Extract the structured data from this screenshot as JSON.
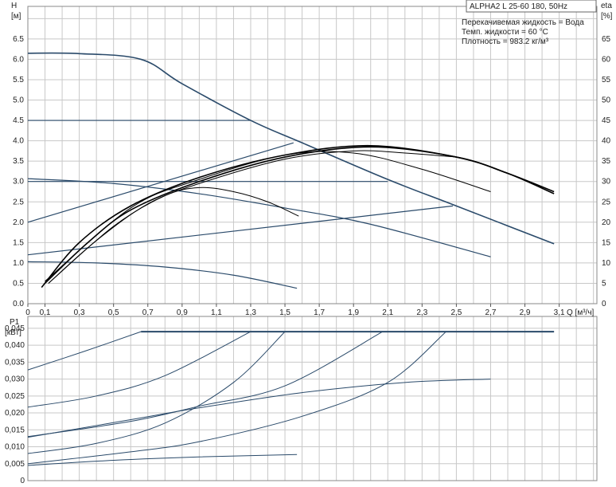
{
  "chart_data": [
    {
      "type": "line",
      "title": "ALPHA2 L 25-60 180, 50Hz",
      "annotations": [
        "Перекачивемая жидкость = Вода",
        "Темп. жидкости = 60 °C",
        "Плотность = 983.2 кг/м³"
      ],
      "ylabel": "H",
      "yunit": "[м]",
      "y2label": "eta",
      "y2unit": "[%]",
      "xlabel": "Q [м³/ч]",
      "xlim": [
        0,
        3.32
      ],
      "ylim": [
        0,
        7.3
      ],
      "y2lim": [
        0,
        73
      ],
      "grid": true,
      "xticks": [
        "0",
        "0,1",
        "0,3",
        "0,5",
        "0,7",
        "0,9",
        "1,1",
        "1,3",
        "1,5",
        "1,7",
        "1,9",
        "2,1",
        "2,3",
        "2,5",
        "2,7",
        "2,9",
        "3,1"
      ],
      "xtick_values": [
        0,
        0.1,
        0.3,
        0.5,
        0.7,
        0.9,
        1.1,
        1.3,
        1.5,
        1.7,
        1.9,
        2.1,
        2.3,
        2.5,
        2.7,
        2.9,
        3.1
      ],
      "yticks": [
        "0.0",
        "0.5",
        "1.0",
        "1.5",
        "2.0",
        "2.5",
        "3.0",
        "3.5",
        "4.0",
        "4.5",
        "5.0",
        "5.5",
        "6.0",
        "6.5"
      ],
      "y2ticks": [
        "0",
        "5",
        "10",
        "15",
        "20",
        "25",
        "30",
        "35",
        "40",
        "45",
        "50",
        "55",
        "60",
        "65"
      ],
      "head_series": [
        {
          "color": "#2a4a6a",
          "points": [
            [
              0,
              6.15
            ],
            [
              0.3,
              6.14
            ],
            [
              0.66,
              6.0
            ],
            [
              0.9,
              5.4
            ],
            [
              1.3,
              4.5
            ],
            [
              1.6,
              3.95
            ],
            [
              2.1,
              3.05
            ],
            [
              2.5,
              2.4
            ],
            [
              3.07,
              1.47
            ]
          ]
        },
        {
          "color": "#2a4a6a",
          "points": [
            [
              0,
              4.5
            ],
            [
              1.3,
              4.5
            ]
          ]
        },
        {
          "color": "#2a4a6a",
          "points": [
            [
              0,
              3.0
            ],
            [
              2.1,
              3.0
            ]
          ]
        },
        {
          "color": "#2a4a6a",
          "points": [
            [
              0,
              2.0
            ],
            [
              1.55,
              3.95
            ]
          ]
        },
        {
          "color": "#2a4a6a",
          "points": [
            [
              0,
              1.2
            ],
            [
              2.48,
              2.4
            ]
          ]
        },
        {
          "color": "#2a4a6a",
          "points": [
            [
              0,
              3.07
            ],
            [
              0.5,
              2.95
            ],
            [
              1.0,
              2.7
            ],
            [
              1.5,
              2.35
            ],
            [
              2.0,
              1.95
            ],
            [
              2.7,
              1.15
            ]
          ]
        },
        {
          "color": "#2a4a6a",
          "points": [
            [
              0,
              1.03
            ],
            [
              0.4,
              1.0
            ],
            [
              0.8,
              0.9
            ],
            [
              1.2,
              0.7
            ],
            [
              1.57,
              0.38
            ]
          ]
        }
      ],
      "eta_series": [
        {
          "color": "#000000",
          "points": [
            [
              0.08,
              4
            ],
            [
              0.3,
              15
            ],
            [
              0.6,
              24
            ],
            [
              1.0,
              31
            ],
            [
              1.5,
              36.5
            ],
            [
              2.0,
              38.8
            ],
            [
              2.5,
              36
            ],
            [
              2.8,
              32
            ],
            [
              3.07,
              27.5
            ]
          ]
        },
        {
          "color": "#000000",
          "points": [
            [
              0.1,
              5
            ],
            [
              0.35,
              15
            ],
            [
              0.6,
              23
            ],
            [
              1.0,
              30
            ],
            [
              1.5,
              36
            ],
            [
              2.0,
              38.5
            ],
            [
              2.5,
              36
            ],
            [
              2.8,
              32
            ],
            [
              3.07,
              27
            ]
          ]
        },
        {
          "color": "#000000",
          "points": [
            [
              0.12,
              5
            ],
            [
              0.4,
              15.5
            ],
            [
              0.7,
              24.5
            ],
            [
              1.0,
              29.5
            ],
            [
              1.5,
              35.5
            ],
            [
              1.9,
              37.5
            ],
            [
              2.2,
              37
            ],
            [
              2.5,
              36
            ]
          ]
        },
        {
          "color": "#000000",
          "points": [
            [
              0.1,
              5.5
            ],
            [
              0.6,
              23.5
            ],
            [
              1.0,
              30.5
            ],
            [
              1.5,
              36.5
            ],
            [
              1.9,
              37
            ],
            [
              2.3,
              33
            ],
            [
              2.7,
              27.5
            ]
          ]
        },
        {
          "color": "#000000",
          "points": [
            [
              0.12,
              5
            ],
            [
              0.5,
              19
            ],
            [
              0.8,
              26.5
            ],
            [
              1.0,
              28.5
            ],
            [
              1.2,
              27.5
            ],
            [
              1.4,
              25
            ],
            [
              1.58,
              21.5
            ]
          ]
        }
      ]
    },
    {
      "type": "line",
      "ylabel": "P1",
      "yunit": "[кВт]",
      "xlim": [
        0,
        3.32
      ],
      "ylim": [
        0,
        0.0485
      ],
      "grid": true,
      "yticks": [
        "0",
        "0,005",
        "0,010",
        "0,015",
        "0,020",
        "0,025",
        "0,030",
        "0,035",
        "0,040",
        "0,045"
      ],
      "series": [
        {
          "color": "#2a4a6a",
          "points": [
            [
              0.66,
              0.044
            ],
            [
              3.07,
              0.044
            ]
          ]
        },
        {
          "color": "#2a4a6a",
          "points": [
            [
              0,
              0.0327
            ],
            [
              0.33,
              0.0382
            ],
            [
              0.66,
              0.044
            ]
          ]
        },
        {
          "color": "#2a4a6a",
          "points": [
            [
              0,
              0.0217
            ],
            [
              0.4,
              0.025
            ],
            [
              0.8,
              0.031
            ],
            [
              1.3,
              0.044
            ]
          ]
        },
        {
          "color": "#2a4a6a",
          "points": [
            [
              0,
              0.008
            ],
            [
              0.4,
              0.011
            ],
            [
              0.8,
              0.017
            ],
            [
              1.2,
              0.029
            ],
            [
              1.5,
              0.044
            ]
          ]
        },
        {
          "color": "#2a4a6a",
          "points": [
            [
              0,
              0.013
            ],
            [
              0.6,
              0.0175
            ],
            [
              1.0,
              0.022
            ],
            [
              1.5,
              0.028
            ],
            [
              2.07,
              0.044
            ]
          ]
        },
        {
          "color": "#2a4a6a",
          "points": [
            [
              0,
              0.0128
            ],
            [
              0.6,
              0.018
            ],
            [
              1.0,
              0.0215
            ],
            [
              1.6,
              0.026
            ],
            [
              2.2,
              0.029
            ],
            [
              2.7,
              0.03
            ]
          ]
        },
        {
          "color": "#2a4a6a",
          "points": [
            [
              0,
              0.005
            ],
            [
              0.6,
              0.0085
            ],
            [
              1.0,
              0.0115
            ],
            [
              1.6,
              0.019
            ],
            [
              2.1,
              0.029
            ],
            [
              2.44,
              0.044
            ]
          ]
        },
        {
          "color": "#2a4a6a",
          "points": [
            [
              0,
              0.0045
            ],
            [
              0.5,
              0.006
            ],
            [
              1.0,
              0.007
            ],
            [
              1.57,
              0.0077
            ]
          ]
        }
      ]
    }
  ]
}
